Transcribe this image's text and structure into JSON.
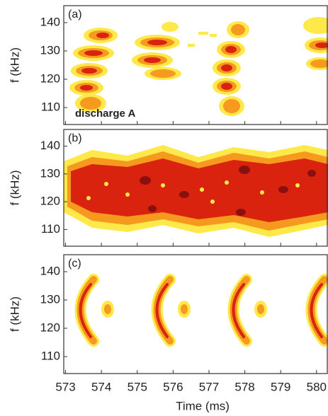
{
  "chart_data": [
    {
      "type": "spectrogram",
      "label": "(a)",
      "annotation": "discharge A",
      "ylabel": "f (kHz)",
      "ylim": [
        104,
        146
      ],
      "yticks": [
        110,
        120,
        130,
        140
      ]
    },
    {
      "type": "spectrogram",
      "label": "(b)",
      "ylabel": "f (kHz)",
      "ylim": [
        104,
        146
      ],
      "yticks": [
        110,
        120,
        130,
        140
      ]
    },
    {
      "type": "spectrogram",
      "label": "(c)",
      "ylabel": "f (kHz)",
      "xlabel": "Time (ms)",
      "xlim": [
        572.95,
        580.3
      ],
      "xticks": [
        573,
        574,
        575,
        576,
        577,
        578,
        579,
        580
      ],
      "ylim": [
        104,
        146
      ],
      "yticks": [
        110,
        120,
        130,
        140
      ]
    }
  ]
}
